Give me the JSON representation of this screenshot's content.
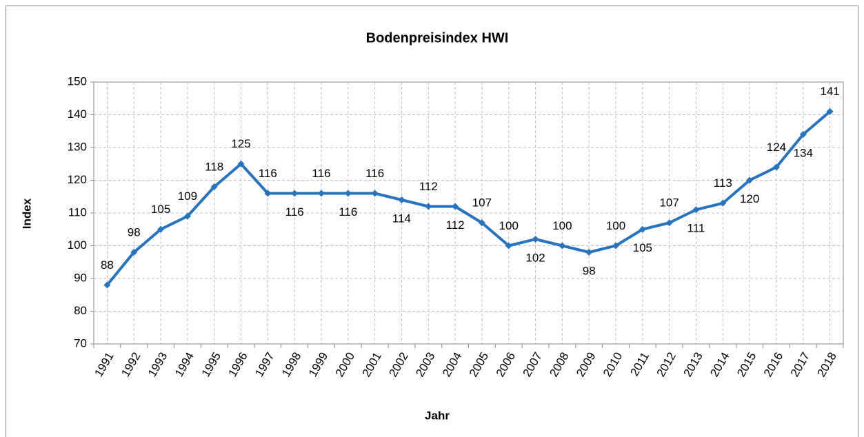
{
  "chart_data": {
    "type": "line",
    "title": "Bodenpreisindex HWI",
    "x_label": "Jahr",
    "y_label": "Index",
    "categories": [
      "1991",
      "1992",
      "1993",
      "1994",
      "1995",
      "1996",
      "1997",
      "1998",
      "1999",
      "2000",
      "2001",
      "2002",
      "2003",
      "2004",
      "2005",
      "2006",
      "2007",
      "2008",
      "2009",
      "2010",
      "2011",
      "2012",
      "2013",
      "2014",
      "2015",
      "2016",
      "2017",
      "2018"
    ],
    "values": [
      88,
      98,
      105,
      109,
      118,
      125,
      116,
      116,
      116,
      116,
      116,
      114,
      112,
      112,
      107,
      100,
      102,
      100,
      98,
      100,
      105,
      107,
      111,
      113,
      120,
      124,
      134,
      141
    ],
    "color": "#2773bd",
    "ylim": [
      70,
      150
    ],
    "yticks": [
      70,
      80,
      90,
      100,
      110,
      120,
      130,
      140,
      150
    ],
    "grid": true
  }
}
